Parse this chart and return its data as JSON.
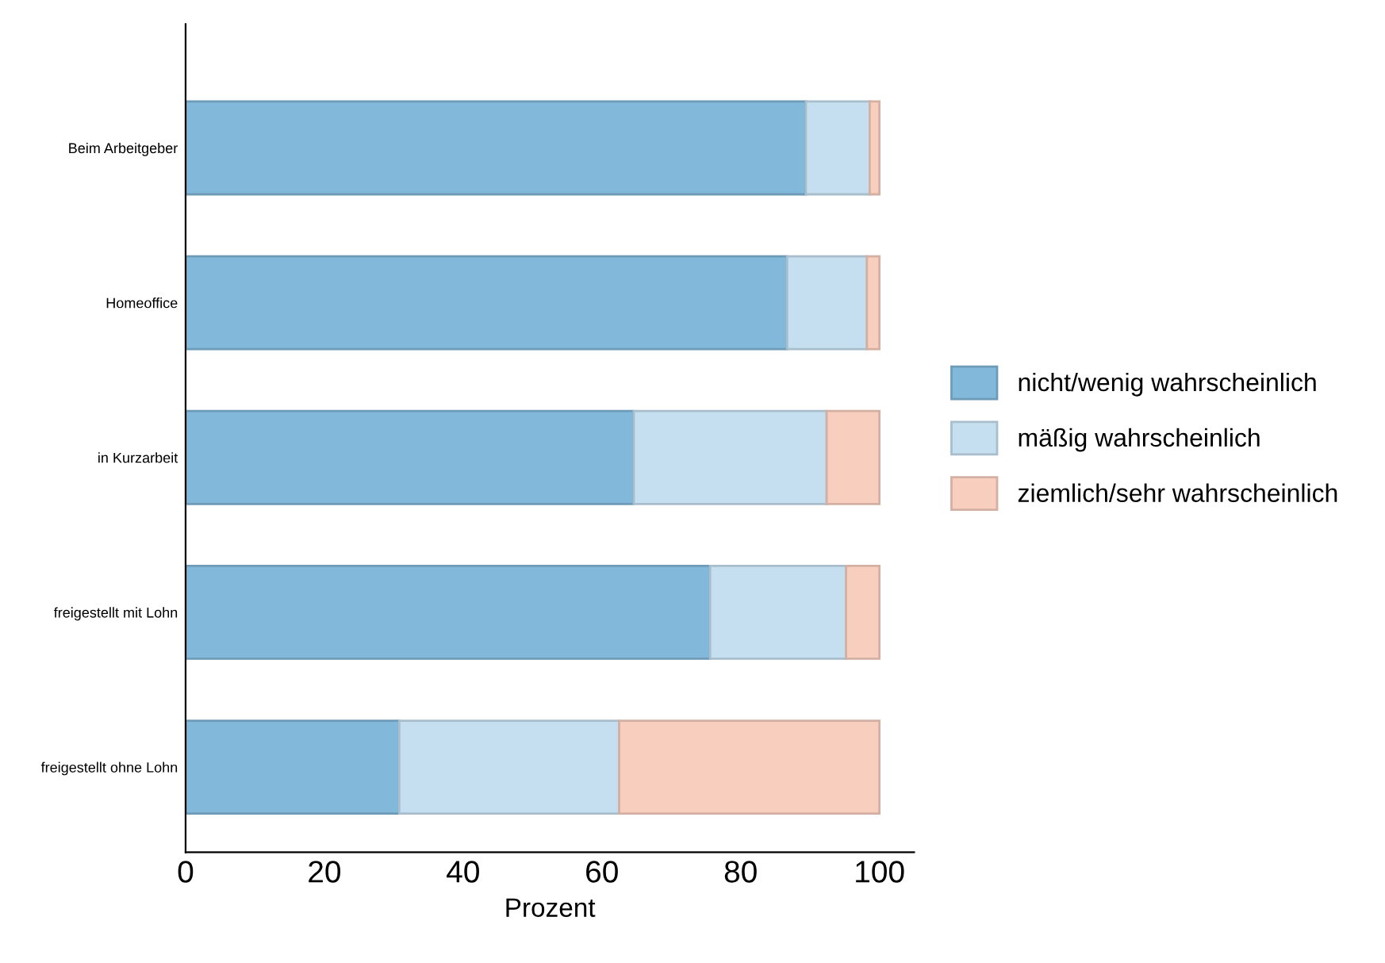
{
  "chart_data": {
    "type": "bar",
    "orientation": "horizontal",
    "stacked": true,
    "xlabel": "Prozent",
    "categories": [
      "Beim Arbeitgeber",
      "Homeoffice",
      "in Kurzarbeit",
      "freigestellt mit Lohn",
      "freigestellt ohne Lohn"
    ],
    "series": [
      {
        "name": "nicht/wenig wahrscheinlich",
        "color": "#82b8d9",
        "values": [
          89.4,
          86.7,
          64.6,
          75.6,
          30.8
        ]
      },
      {
        "name": "mäßig wahrscheinlich",
        "color": "#c6dff0",
        "values": [
          9.2,
          11.5,
          27.8,
          19.6,
          31.7
        ]
      },
      {
        "name": "ziemlich/sehr wahrscheinlich",
        "color": "#f8cfbf",
        "values": [
          1.4,
          1.8,
          7.6,
          4.8,
          37.5
        ]
      }
    ],
    "xlim": [
      0,
      105
    ],
    "xticks": [
      0,
      20,
      40,
      60,
      80,
      100
    ],
    "grid": false,
    "legend": "right"
  }
}
